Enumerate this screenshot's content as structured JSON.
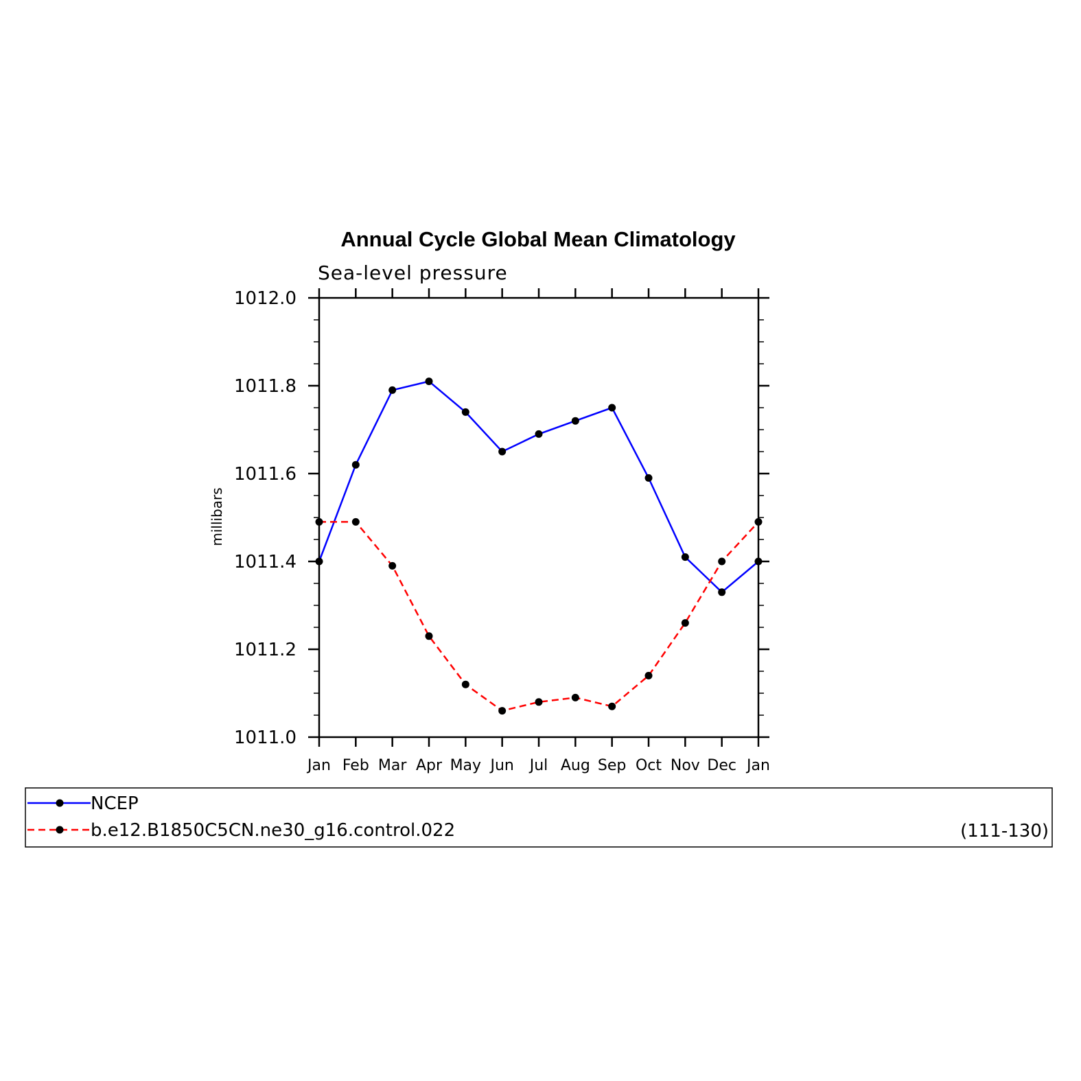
{
  "chart_data": {
    "type": "line",
    "title": "Annual Cycle Global Mean Climatology",
    "subtitle": "Sea-level pressure",
    "ylabel": "millibars",
    "xlabel": "",
    "categories": [
      "Jan",
      "Feb",
      "Mar",
      "Apr",
      "May",
      "Jun",
      "Jul",
      "Aug",
      "Sep",
      "Oct",
      "Nov",
      "Dec",
      "Jan"
    ],
    "ylim": [
      1011.0,
      1012.0
    ],
    "yticks": [
      "1011.0",
      "1011.2",
      "1011.4",
      "1011.6",
      "1011.8",
      "1012.0"
    ],
    "grid": false,
    "series": [
      {
        "name": "NCEP",
        "color": "#0000ff",
        "dash": "solid",
        "values": [
          1011.4,
          1011.62,
          1011.79,
          1011.81,
          1011.74,
          1011.65,
          1011.69,
          1011.72,
          1011.75,
          1011.59,
          1011.41,
          1011.33,
          1011.4
        ]
      },
      {
        "name": "b.e12.B1850C5CN.ne30_g16.control.022",
        "color": "#ff0000",
        "dash": "dashed",
        "values": [
          1011.49,
          1011.49,
          1011.39,
          1011.23,
          1011.12,
          1011.06,
          1011.08,
          1011.09,
          1011.07,
          1011.14,
          1011.26,
          1011.4,
          1011.49
        ]
      }
    ],
    "legend": {
      "placement": "bottom",
      "note": "(111-130)"
    }
  }
}
